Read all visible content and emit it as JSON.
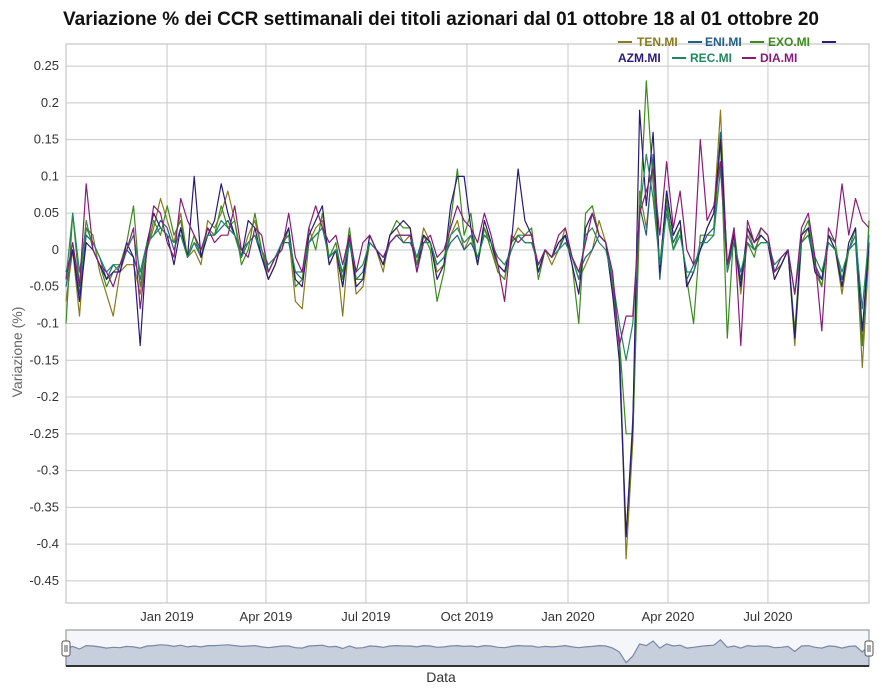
{
  "chart_data": {
    "type": "line",
    "title": "Variazione % dei CCR settimanali dei titoli azionari dal 01 ottobre 18 al 01 ottobre 20",
    "xlabel": "Data",
    "ylabel": "Variazione (%)",
    "ylim": [
      -0.48,
      0.28
    ],
    "y_ticks": [
      "0.25",
      "0.2",
      "0.15",
      "0.1",
      "0.05",
      "0",
      "-0.05",
      "-0.1",
      "-0.15",
      "-0.2",
      "-0.25",
      "-0.3",
      "-0.35",
      "-0.4",
      "-0.45"
    ],
    "x_ticks": [
      "Jan 2019",
      "Apr 2019",
      "Jul 2019",
      "Oct 2019",
      "Jan 2020",
      "Apr 2020",
      "Jul 2020"
    ],
    "x_start": "2018-10-01",
    "x_end": "2020-10-01",
    "grid": true,
    "legend_position": "top-right",
    "range_selector": true,
    "series": [
      {
        "name": "TEN.MI",
        "color": "#8a7a1c",
        "values": [
          -0.07,
          0.0,
          -0.09,
          0.03,
          0.02,
          -0.03,
          -0.06,
          -0.09,
          -0.03,
          -0.02,
          -0.02,
          -0.06,
          0.0,
          0.03,
          0.07,
          0.04,
          0.01,
          0.05,
          -0.01,
          0.0,
          -0.02,
          0.04,
          0.03,
          0.05,
          0.08,
          0.04,
          -0.01,
          0.02,
          0.04,
          0.0,
          -0.04,
          -0.02,
          0.01,
          0.02,
          -0.07,
          -0.08,
          0.01,
          0.03,
          0.04,
          -0.02,
          0.0,
          -0.09,
          0.02,
          -0.06,
          -0.05,
          0.01,
          0.0,
          -0.03,
          0.02,
          0.03,
          0.01,
          0.02,
          -0.02,
          0.03,
          0.01,
          -0.03,
          -0.02,
          0.02,
          0.04,
          0.0,
          0.02,
          -0.02,
          0.03,
          0.01,
          -0.03,
          -0.04,
          0.01,
          0.03,
          0.02,
          0.02,
          -0.03,
          0.0,
          -0.02,
          0.0,
          0.03,
          -0.01,
          -0.04,
          -0.02,
          0.0,
          0.04,
          0.01,
          -0.05,
          -0.12,
          -0.42,
          -0.26,
          0.08,
          0.03,
          0.12,
          -0.03,
          0.08,
          0.02,
          0.04,
          -0.05,
          -0.03,
          0.0,
          0.03,
          0.05,
          0.19,
          -0.03,
          0.02,
          -0.06,
          0.03,
          0.0,
          0.02,
          0.01,
          -0.04,
          -0.02,
          0.0,
          -0.13,
          0.01,
          0.03,
          -0.03,
          -0.05,
          0.02,
          0.0,
          -0.06,
          0.0,
          0.02,
          -0.16,
          0.0
        ]
      },
      {
        "name": "ENI.MI",
        "color": "#1f5f8b",
        "values": [
          -0.05,
          0.0,
          -0.06,
          0.02,
          0.01,
          -0.01,
          -0.04,
          -0.02,
          -0.03,
          0.0,
          -0.01,
          -0.04,
          0.01,
          0.02,
          0.04,
          0.03,
          0.0,
          0.03,
          -0.01,
          0.01,
          -0.01,
          0.02,
          0.02,
          0.03,
          0.04,
          0.02,
          0.0,
          0.01,
          0.02,
          -0.01,
          -0.03,
          -0.01,
          0.01,
          0.01,
          -0.03,
          -0.04,
          0.01,
          0.02,
          0.03,
          -0.01,
          0.0,
          -0.05,
          0.01,
          -0.04,
          -0.03,
          0.01,
          0.0,
          -0.02,
          0.01,
          0.02,
          0.01,
          0.01,
          -0.01,
          0.02,
          0.01,
          -0.02,
          -0.01,
          0.01,
          0.02,
          0.0,
          0.01,
          -0.01,
          0.02,
          0.01,
          -0.02,
          -0.03,
          0.0,
          0.02,
          0.01,
          0.01,
          -0.02,
          0.0,
          -0.01,
          0.0,
          0.02,
          -0.01,
          -0.03,
          -0.01,
          0.0,
          0.02,
          0.01,
          -0.04,
          -0.13,
          -0.39,
          -0.23,
          0.06,
          0.02,
          0.13,
          -0.04,
          0.06,
          0.01,
          0.03,
          -0.04,
          -0.02,
          0.0,
          0.02,
          0.03,
          0.16,
          -0.02,
          0.01,
          -0.04,
          0.02,
          0.0,
          0.01,
          0.01,
          -0.03,
          -0.02,
          0.0,
          -0.12,
          0.01,
          0.02,
          -0.02,
          -0.04,
          0.01,
          0.0,
          -0.04,
          0.0,
          0.01,
          -0.13,
          0.01
        ]
      },
      {
        "name": "EXO.MI",
        "color": "#3a8c1c",
        "values": [
          -0.1,
          0.05,
          -0.05,
          0.04,
          0.0,
          -0.02,
          -0.05,
          -0.03,
          -0.02,
          0.01,
          0.06,
          -0.05,
          0.0,
          0.04,
          0.02,
          0.06,
          0.02,
          0.04,
          -0.01,
          0.02,
          -0.01,
          0.03,
          0.02,
          0.06,
          0.03,
          0.04,
          -0.02,
          0.0,
          0.05,
          0.0,
          -0.03,
          -0.01,
          0.0,
          0.03,
          -0.05,
          -0.04,
          0.03,
          0.0,
          0.05,
          -0.01,
          0.01,
          -0.04,
          0.03,
          -0.04,
          -0.04,
          0.02,
          0.0,
          -0.02,
          0.02,
          0.04,
          0.03,
          0.03,
          -0.02,
          0.02,
          0.0,
          -0.07,
          -0.03,
          0.04,
          0.11,
          0.02,
          0.05,
          -0.02,
          0.03,
          0.0,
          -0.03,
          -0.04,
          0.01,
          0.02,
          0.02,
          0.03,
          -0.04,
          0.0,
          -0.01,
          0.01,
          0.02,
          -0.02,
          -0.1,
          0.05,
          0.06,
          0.02,
          0.01,
          -0.06,
          -0.12,
          -0.25,
          -0.25,
          0.04,
          0.23,
          0.09,
          -0.02,
          0.07,
          0.0,
          0.03,
          -0.04,
          -0.1,
          0.02,
          0.02,
          0.02,
          0.15,
          -0.12,
          0.03,
          -0.05,
          0.01,
          -0.01,
          0.03,
          0.02,
          -0.03,
          -0.02,
          0.0,
          -0.11,
          0.02,
          0.04,
          -0.02,
          -0.05,
          0.02,
          0.01,
          -0.05,
          0.0,
          0.03,
          -0.13,
          0.04
        ]
      },
      {
        "name": "AZM.MI",
        "color": "#2a1a7a",
        "values": [
          -0.03,
          0.0,
          -0.07,
          0.01,
          0.0,
          -0.02,
          -0.04,
          -0.03,
          -0.03,
          0.01,
          -0.01,
          -0.13,
          0.01,
          0.05,
          0.03,
          0.02,
          -0.02,
          0.03,
          -0.01,
          0.1,
          -0.01,
          0.02,
          0.04,
          0.09,
          0.05,
          0.02,
          -0.01,
          0.04,
          0.03,
          -0.01,
          -0.04,
          -0.02,
          0.01,
          0.03,
          -0.04,
          -0.05,
          0.02,
          0.04,
          0.06,
          -0.02,
          0.0,
          -0.05,
          0.02,
          -0.05,
          -0.04,
          0.02,
          0.0,
          -0.02,
          0.02,
          0.03,
          0.04,
          0.03,
          -0.03,
          0.02,
          0.01,
          -0.04,
          -0.02,
          0.06,
          0.1,
          0.1,
          0.03,
          -0.02,
          0.04,
          0.01,
          -0.02,
          -0.03,
          0.01,
          0.11,
          0.04,
          0.02,
          -0.03,
          0.0,
          -0.01,
          0.01,
          0.02,
          -0.02,
          -0.06,
          0.03,
          0.05,
          0.02,
          0.01,
          -0.06,
          -0.15,
          -0.39,
          -0.24,
          0.19,
          0.06,
          0.16,
          -0.03,
          0.08,
          0.02,
          0.04,
          -0.05,
          -0.03,
          0.0,
          0.03,
          0.05,
          0.15,
          -0.02,
          0.02,
          -0.05,
          0.03,
          0.01,
          0.02,
          0.01,
          -0.04,
          -0.02,
          0.0,
          -0.12,
          0.02,
          0.03,
          -0.03,
          -0.04,
          0.02,
          0.0,
          -0.05,
          0.01,
          0.03,
          -0.11,
          0.01
        ]
      },
      {
        "name": "REC.MI",
        "color": "#1e8a5a",
        "values": [
          -0.04,
          0.05,
          -0.03,
          0.03,
          0.01,
          -0.01,
          -0.03,
          -0.02,
          -0.02,
          0.0,
          0.02,
          -0.03,
          0.01,
          0.02,
          0.03,
          0.02,
          0.01,
          0.02,
          -0.01,
          0.01,
          0.0,
          0.02,
          0.02,
          0.04,
          0.03,
          0.02,
          -0.01,
          0.01,
          0.02,
          0.0,
          -0.02,
          -0.01,
          0.01,
          0.02,
          -0.03,
          -0.03,
          0.01,
          0.02,
          0.03,
          -0.01,
          0.0,
          -0.03,
          0.01,
          -0.03,
          -0.02,
          0.01,
          0.0,
          -0.01,
          0.01,
          0.02,
          0.02,
          0.02,
          -0.01,
          0.01,
          0.01,
          -0.02,
          -0.01,
          0.02,
          0.03,
          0.01,
          0.02,
          -0.01,
          0.02,
          0.01,
          -0.01,
          -0.02,
          0.0,
          0.02,
          0.01,
          0.01,
          -0.02,
          0.0,
          -0.01,
          0.0,
          0.01,
          -0.01,
          -0.04,
          0.02,
          0.03,
          0.01,
          0.0,
          -0.04,
          -0.1,
          -0.15,
          -0.1,
          0.05,
          0.13,
          0.07,
          -0.02,
          0.05,
          0.0,
          0.02,
          -0.03,
          -0.03,
          0.01,
          0.01,
          0.02,
          0.11,
          -0.03,
          0.01,
          -0.03,
          0.01,
          0.0,
          0.01,
          0.01,
          -0.02,
          -0.01,
          0.0,
          -0.06,
          0.01,
          0.02,
          -0.01,
          -0.03,
          0.01,
          0.0,
          -0.03,
          0.0,
          0.02,
          -0.08,
          0.02
        ]
      },
      {
        "name": "DIA.MI",
        "color": "#8b1a7a",
        "values": [
          -0.04,
          0.01,
          -0.05,
          0.09,
          0.0,
          -0.02,
          -0.03,
          -0.05,
          -0.02,
          0.0,
          0.03,
          -0.08,
          0.0,
          0.06,
          0.05,
          0.01,
          -0.01,
          0.07,
          0.04,
          0.02,
          0.0,
          0.03,
          0.01,
          0.02,
          0.02,
          0.06,
          0.0,
          -0.01,
          0.03,
          0.02,
          -0.03,
          -0.01,
          0.0,
          0.05,
          -0.01,
          -0.03,
          0.03,
          0.06,
          0.03,
          0.01,
          0.02,
          -0.02,
          0.02,
          -0.03,
          0.01,
          0.02,
          0.0,
          -0.01,
          0.01,
          0.02,
          0.02,
          0.02,
          -0.03,
          0.01,
          0.02,
          -0.01,
          0.0,
          0.03,
          0.06,
          0.04,
          0.03,
          0.01,
          0.05,
          0.02,
          -0.02,
          -0.07,
          0.02,
          0.01,
          0.02,
          0.02,
          -0.02,
          0.0,
          -0.01,
          0.02,
          0.03,
          -0.01,
          -0.03,
          0.01,
          0.05,
          0.02,
          0.01,
          -0.03,
          -0.13,
          -0.09,
          -0.09,
          0.05,
          0.08,
          0.11,
          0.02,
          0.12,
          0.03,
          0.08,
          0.0,
          -0.02,
          0.15,
          0.04,
          0.06,
          0.12,
          -0.02,
          0.03,
          -0.13,
          0.04,
          0.01,
          0.03,
          0.02,
          -0.03,
          -0.01,
          0.0,
          -0.06,
          0.03,
          0.05,
          -0.01,
          -0.11,
          0.03,
          0.01,
          0.09,
          0.02,
          0.07,
          0.04,
          0.03
        ]
      }
    ]
  },
  "range_selector_handles": [
    "left-handle",
    "right-handle"
  ]
}
